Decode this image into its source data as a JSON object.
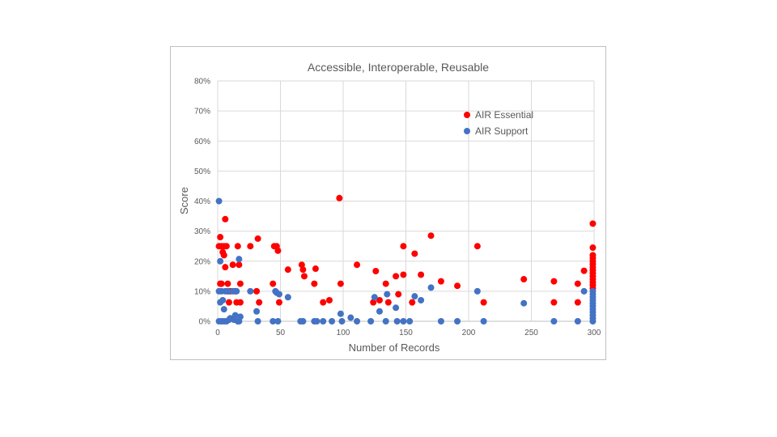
{
  "chart_data": {
    "type": "scatter",
    "title": "Accessible, Interoperable, Reusable",
    "xlabel": "Number of Records",
    "ylabel": "Score",
    "xlim": [
      0,
      300
    ],
    "ylim": [
      0,
      0.8
    ],
    "x_ticks": [
      0,
      50,
      100,
      150,
      200,
      250,
      300
    ],
    "x_tick_labels": [
      "0",
      "50",
      "100",
      "150",
      "200",
      "250",
      "300"
    ],
    "y_ticks": [
      0,
      0.1,
      0.2,
      0.3,
      0.4,
      0.5,
      0.6,
      0.7,
      0.8
    ],
    "y_tick_labels": [
      "0%",
      "10%",
      "20%",
      "30%",
      "40%",
      "50%",
      "60%",
      "70%",
      "80%"
    ],
    "grid": "vertical and horizontal",
    "legend_position": "top-right",
    "series": [
      {
        "name": "AIR Essential",
        "color": "#ff0000",
        "points": [
          [
            1,
            0.25
          ],
          [
            2,
            0.28
          ],
          [
            2,
            0.125
          ],
          [
            3,
            0.25
          ],
          [
            3,
            0.125
          ],
          [
            4,
            0.23
          ],
          [
            5,
            0.25
          ],
          [
            5,
            0.22
          ],
          [
            6,
            0.34
          ],
          [
            6,
            0.18
          ],
          [
            7,
            0.25
          ],
          [
            8,
            0.125
          ],
          [
            8,
            0.1
          ],
          [
            9,
            0.063
          ],
          [
            10,
            0.1
          ],
          [
            12,
            0.188
          ],
          [
            14,
            0.1
          ],
          [
            15,
            0.063
          ],
          [
            16,
            0.25
          ],
          [
            17,
            0.188
          ],
          [
            18,
            0.125
          ],
          [
            18,
            0.063
          ],
          [
            26,
            0.25
          ],
          [
            31,
            0.1
          ],
          [
            32,
            0.275
          ],
          [
            33,
            0.063
          ],
          [
            44,
            0.125
          ],
          [
            45,
            0.25
          ],
          [
            47,
            0.25
          ],
          [
            48,
            0.235
          ],
          [
            49,
            0.063
          ],
          [
            56,
            0.172
          ],
          [
            67,
            0.188
          ],
          [
            68,
            0.172
          ],
          [
            69,
            0.15
          ],
          [
            77,
            0.125
          ],
          [
            78,
            0.175
          ],
          [
            84,
            0.063
          ],
          [
            89,
            0.07
          ],
          [
            97,
            0.41
          ],
          [
            98,
            0.125
          ],
          [
            111,
            0.188
          ],
          [
            124,
            0.063
          ],
          [
            126,
            0.167
          ],
          [
            129,
            0.07
          ],
          [
            134,
            0.125
          ],
          [
            136,
            0.063
          ],
          [
            142,
            0.15
          ],
          [
            144,
            0.09
          ],
          [
            148,
            0.25
          ],
          [
            148,
            0.155
          ],
          [
            155,
            0.063
          ],
          [
            157,
            0.225
          ],
          [
            162,
            0.155
          ],
          [
            170,
            0.285
          ],
          [
            178,
            0.133
          ],
          [
            191,
            0.118
          ],
          [
            207,
            0.25
          ],
          [
            212,
            0.063
          ],
          [
            244,
            0.14
          ],
          [
            268,
            0.133
          ],
          [
            268,
            0.063
          ],
          [
            287,
            0.125
          ],
          [
            287,
            0.063
          ],
          [
            292,
            0.168
          ],
          [
            299,
            0.325
          ],
          [
            299,
            0.245
          ],
          [
            299,
            0.22
          ],
          [
            299,
            0.21
          ],
          [
            299,
            0.2
          ],
          [
            299,
            0.19
          ],
          [
            299,
            0.18
          ],
          [
            299,
            0.17
          ],
          [
            299,
            0.16
          ],
          [
            299,
            0.15
          ],
          [
            299,
            0.14
          ],
          [
            299,
            0.13
          ],
          [
            299,
            0.12
          ],
          [
            299,
            0.11
          ]
        ]
      },
      {
        "name": "AIR Support",
        "color": "#4472c4",
        "points": [
          [
            1,
            0.4
          ],
          [
            1,
            0.1
          ],
          [
            1,
            0.0
          ],
          [
            2,
            0.2
          ],
          [
            2,
            0.063
          ],
          [
            3,
            0.1
          ],
          [
            3,
            0.0
          ],
          [
            4,
            0.07
          ],
          [
            5,
            0.04
          ],
          [
            5,
            0.0
          ],
          [
            6,
            0.1
          ],
          [
            7,
            0.0
          ],
          [
            8,
            0.1
          ],
          [
            9,
            0.005
          ],
          [
            10,
            0.01
          ],
          [
            12,
            0.1
          ],
          [
            13,
            0.005
          ],
          [
            14,
            0.02
          ],
          [
            15,
            0.1
          ],
          [
            16,
            0.0
          ],
          [
            17,
            0.207
          ],
          [
            17,
            0.0
          ],
          [
            18,
            0.015
          ],
          [
            26,
            0.1
          ],
          [
            31,
            0.033
          ],
          [
            32,
            0.0
          ],
          [
            44,
            0.0
          ],
          [
            46,
            0.1
          ],
          [
            47,
            0.095
          ],
          [
            48,
            0.0
          ],
          [
            49,
            0.09
          ],
          [
            56,
            0.08
          ],
          [
            66,
            0.0
          ],
          [
            68,
            0.0
          ],
          [
            77,
            0.0
          ],
          [
            79,
            0.0
          ],
          [
            84,
            0.0
          ],
          [
            91,
            0.0
          ],
          [
            98,
            0.025
          ],
          [
            99,
            0.0
          ],
          [
            106,
            0.012
          ],
          [
            111,
            0.0
          ],
          [
            122,
            0.0
          ],
          [
            125,
            0.08
          ],
          [
            129,
            0.033
          ],
          [
            134,
            0.0
          ],
          [
            135,
            0.09
          ],
          [
            142,
            0.045
          ],
          [
            143,
            0.0
          ],
          [
            148,
            0.0
          ],
          [
            153,
            0.0
          ],
          [
            157,
            0.083
          ],
          [
            162,
            0.07
          ],
          [
            170,
            0.112
          ],
          [
            178,
            0.0
          ],
          [
            191,
            0.0
          ],
          [
            207,
            0.1
          ],
          [
            212,
            0.0
          ],
          [
            244,
            0.06
          ],
          [
            268,
            0.0
          ],
          [
            287,
            0.0
          ],
          [
            292,
            0.1
          ],
          [
            299,
            0.1
          ],
          [
            299,
            0.09
          ],
          [
            299,
            0.08
          ],
          [
            299,
            0.07
          ],
          [
            299,
            0.06
          ],
          [
            299,
            0.05
          ],
          [
            299,
            0.04
          ],
          [
            299,
            0.03
          ],
          [
            299,
            0.02
          ],
          [
            299,
            0.01
          ],
          [
            299,
            0.0
          ]
        ]
      }
    ]
  }
}
